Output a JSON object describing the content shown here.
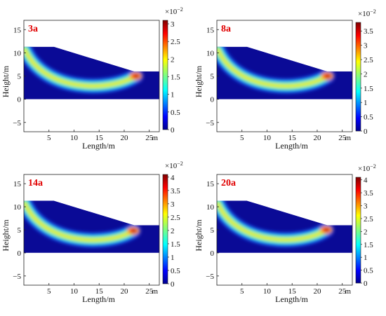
{
  "chart_data": [
    {
      "type": "heatmap",
      "title": "3a",
      "xlabel": "Length/m",
      "ylabel": "Height/m",
      "xticks": [
        5,
        10,
        15,
        20,
        25
      ],
      "yticks": [
        -5,
        0,
        5,
        10,
        15
      ],
      "xunit": "m",
      "xlim": [
        0,
        27
      ],
      "ylim": [
        -7,
        17
      ],
      "slope_profile": {
        "crest_x": 6,
        "crest_y": 11.3,
        "toe_x": 22,
        "toe_y": 6,
        "base_y": 0
      },
      "colorbar": {
        "min": 0,
        "max": 3.1,
        "ticks": [
          0,
          0.5,
          1,
          1.5,
          2,
          2.5,
          3
        ],
        "exponent_label": "×10",
        "exponent": "−2"
      },
      "peak": {
        "x": 22.3,
        "y": 5.0
      }
    },
    {
      "type": "heatmap",
      "title": "8a",
      "xlabel": "Length/m",
      "ylabel": "Height/m",
      "xticks": [
        5,
        10,
        15,
        20,
        25
      ],
      "yticks": [
        -5,
        0,
        5,
        10,
        15
      ],
      "xunit": "m",
      "xlim": [
        0,
        27
      ],
      "ylim": [
        -7,
        17
      ],
      "slope_profile": {
        "crest_x": 6,
        "crest_y": 11.3,
        "toe_x": 22,
        "toe_y": 6,
        "base_y": 0
      },
      "colorbar": {
        "min": 0,
        "max": 3.8,
        "ticks": [
          0,
          0.5,
          1,
          1.5,
          2,
          2.5,
          3,
          3.5
        ],
        "exponent_label": "×10",
        "exponent": "−2"
      },
      "peak": {
        "x": 22.0,
        "y": 5.0
      }
    },
    {
      "type": "heatmap",
      "title": "14a",
      "xlabel": "Length/m",
      "ylabel": "Height/m",
      "xticks": [
        5,
        10,
        15,
        20,
        25
      ],
      "yticks": [
        -5,
        0,
        5,
        10,
        15
      ],
      "xunit": "m",
      "xlim": [
        0,
        27
      ],
      "ylim": [
        -7,
        17
      ],
      "slope_profile": {
        "crest_x": 6,
        "crest_y": 11.3,
        "toe_x": 22,
        "toe_y": 6,
        "base_y": 0
      },
      "colorbar": {
        "min": 0,
        "max": 4.1,
        "ticks": [
          0,
          0.5,
          1,
          1.5,
          2,
          2.5,
          3,
          3.5,
          4
        ],
        "exponent_label": "×10",
        "exponent": "−2"
      },
      "peak": {
        "x": 21.8,
        "y": 4.8
      }
    },
    {
      "type": "heatmap",
      "title": "20a",
      "xlabel": "Length/m",
      "ylabel": "Height/m",
      "xticks": [
        5,
        10,
        15,
        20,
        25
      ],
      "yticks": [
        -5,
        0,
        5,
        10,
        15
      ],
      "xunit": "m",
      "xlim": [
        0,
        27
      ],
      "ylim": [
        -7,
        17
      ],
      "slope_profile": {
        "crest_x": 6,
        "crest_y": 11.3,
        "toe_x": 22,
        "toe_y": 6,
        "base_y": 0
      },
      "colorbar": {
        "min": 0,
        "max": 4.1,
        "ticks": [
          0,
          0.5,
          1,
          1.5,
          2,
          2.5,
          3,
          3.5,
          4
        ],
        "exponent_label": "×10",
        "exponent": "−2"
      },
      "peak": {
        "x": 21.8,
        "y": 5.0
      }
    }
  ]
}
